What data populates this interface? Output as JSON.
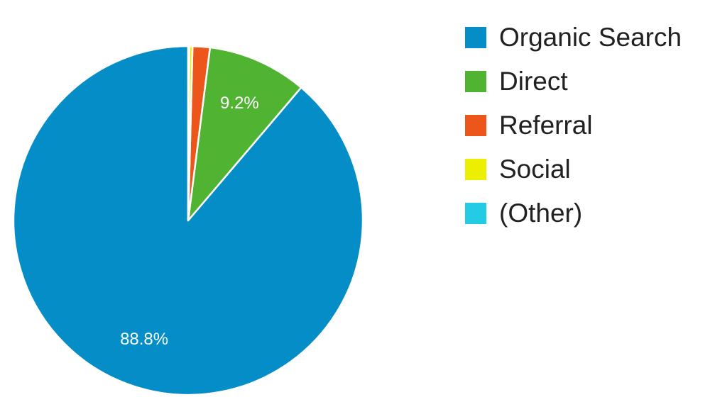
{
  "chart_data": {
    "type": "pie",
    "title": "",
    "legend_position": "right",
    "slices": [
      {
        "label": "Organic Search",
        "value": 88.8,
        "color": "#058dc7",
        "data_label": "88.8%"
      },
      {
        "label": "Direct",
        "value": 9.2,
        "color": "#50b432",
        "data_label": "9.2%"
      },
      {
        "label": "Referral",
        "value": 1.6,
        "color": "#ed561b",
        "data_label": ""
      },
      {
        "label": "Social",
        "value": 0.3,
        "color": "#edef00",
        "data_label": ""
      },
      {
        "label": "(Other)",
        "value": 0.1,
        "color": "#24cbe5",
        "data_label": ""
      }
    ]
  }
}
